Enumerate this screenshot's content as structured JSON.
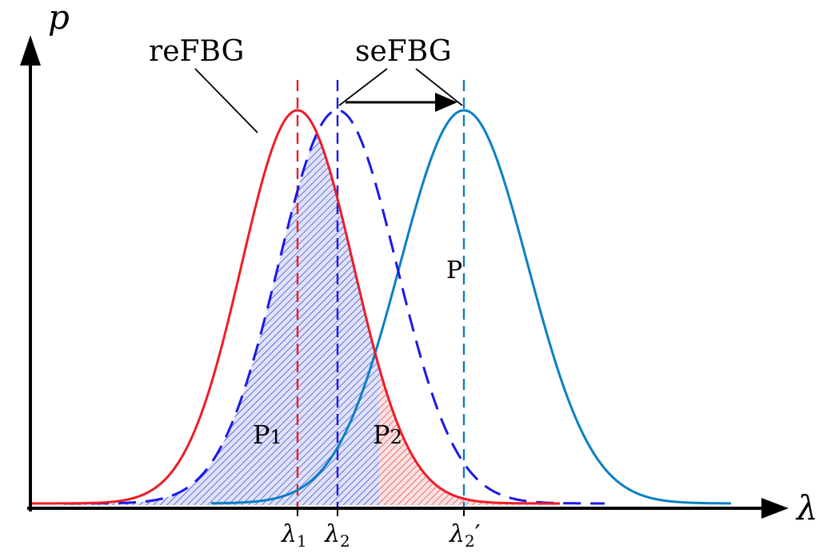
{
  "labels": {
    "y_axis": "p",
    "x_axis": "λ",
    "reference_curve": "reFBG",
    "sensing_curve": "seFBG",
    "overlap_region": "P",
    "region_left": "P",
    "region_left_sub": "1",
    "region_right": "P",
    "region_right_sub": "2",
    "tick_lambda1": "λ",
    "tick_lambda1_sub": "1",
    "tick_lambda2": "λ",
    "tick_lambda2_sub": "2",
    "tick_lambda2_shifted": "λ",
    "tick_lambda2_shifted_sub": "2",
    "tick_lambda2_shifted_prime": "′"
  },
  "colors": {
    "reference": "#ee1c25",
    "sensing_dashed": "#1a1ae6",
    "sensing_shifted": "#0a7fc4",
    "hatch_blue": "#3b3bd6",
    "hatch_red": "#e0403a",
    "axis": "#000000"
  },
  "spectra": {
    "reference": {
      "center": "λ1",
      "style": "solid"
    },
    "sensing": {
      "center": "λ2",
      "style": "dashed"
    },
    "sensing_shifted": {
      "center": "λ2′",
      "style": "solid"
    }
  }
}
